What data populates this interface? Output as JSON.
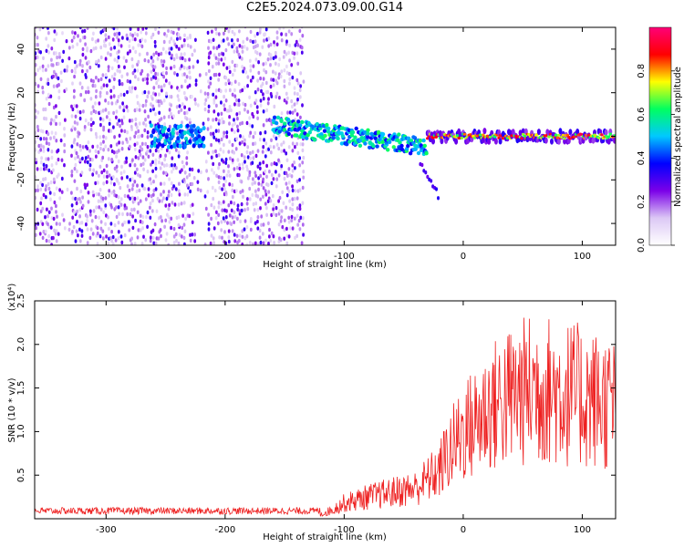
{
  "title": "C2E5.2024.073.09.00.G14",
  "chart_data": [
    {
      "type": "heatmap",
      "xlabel": "Height of straight line (km)",
      "ylabel": "Frequency (Hz)",
      "xlim": [
        -360,
        128
      ],
      "ylim": [
        -50,
        50
      ],
      "xticks": [
        -300,
        -200,
        -100,
        0,
        100
      ],
      "xtick_labels": [
        "-300",
        "-200",
        "-100",
        "0",
        "100"
      ],
      "yticks": [
        -40,
        -20,
        0,
        20,
        40
      ],
      "ytick_labels": [
        "-40",
        "-20",
        "0",
        "20",
        "40"
      ],
      "colorbar": {
        "label": "Normalized spectral amplitude",
        "range": [
          0,
          1
        ],
        "ticks": [
          0.0,
          0.2,
          0.4,
          0.6,
          0.8
        ],
        "tick_labels": [
          "0.0",
          "0.2",
          "0.4",
          "0.6",
          "0.8"
        ],
        "colors": [
          "#ffffff",
          "#dcc8f5",
          "#7b00e8",
          "#0000ff",
          "#00c8ff",
          "#00ff60",
          "#ffff00",
          "#ff0000",
          "#ff0078"
        ]
      },
      "regions": [
        {
          "x_range": [
            -360,
            -140
          ],
          "description": "broadband noise, amplitude 0.1-0.4"
        },
        {
          "x_range": [
            -260,
            -220
          ],
          "freq_center": 0,
          "amplitude": 0.5
        },
        {
          "x_range": [
            -160,
            -30
          ],
          "freq_center": 5,
          "freq_end": -5,
          "amplitude": 0.6
        },
        {
          "x_range": [
            -35,
            -20
          ],
          "freq_center": -20,
          "freq_end": -28,
          "amplitude": 0.3
        },
        {
          "x_range": [
            -30,
            128
          ],
          "freq_center": 0,
          "amplitude": 0.95
        }
      ]
    },
    {
      "type": "line",
      "xlabel": "Height of straight line (km)",
      "ylabel": "SNR (10 * v/v)",
      "yscale_label": "(x10⁴)",
      "xlim": [
        -360,
        128
      ],
      "ylim": [
        0,
        2.5
      ],
      "xticks": [
        -300,
        -200,
        -100,
        0,
        100
      ],
      "xtick_labels": [
        "-300",
        "-200",
        "-100",
        "0",
        "100"
      ],
      "yticks": [
        0.5,
        1.0,
        1.5,
        2.0,
        2.5
      ],
      "ytick_labels": [
        "0.5",
        "1.0",
        "1.5",
        "2.0",
        "2.5"
      ],
      "series": [
        {
          "color": "#ee2020",
          "trend_x": [
            -360,
            -120,
            -110,
            -100,
            -80,
            -60,
            -40,
            -30,
            -20,
            -15,
            -10,
            0,
            10,
            20,
            40,
            60,
            80,
            100,
            128
          ],
          "trend_y": [
            0.05,
            0.05,
            0.1,
            0.18,
            0.25,
            0.3,
            0.35,
            0.45,
            0.55,
            0.7,
            0.8,
            1.0,
            1.1,
            1.25,
            1.4,
            1.5,
            1.45,
            1.4,
            1.3
          ]
        }
      ]
    }
  ]
}
